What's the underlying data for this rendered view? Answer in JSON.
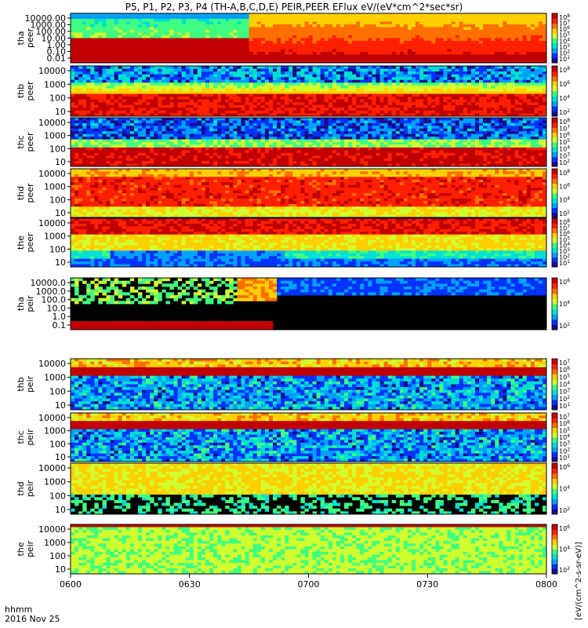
{
  "chart_data": {
    "type": "heatmap",
    "title": "P5, P1, P2, P3, P4 (TH-A,B,C,D,E) PEIR,PEER EFlux eV/(eV*cm^2*sec*sr)",
    "time_ticks": [
      "0600",
      "0630",
      "0700",
      "0730",
      "0800"
    ],
    "time_range": [
      "06:00",
      "08:00"
    ],
    "time_stamp": {
      "format": "hhmm",
      "date": "2016 Nov 25"
    },
    "colorbar_label": "[eV/(cm^2-s-sr-eV)]",
    "colormap": [
      "#1a0b8a",
      "#0033ff",
      "#00a0ff",
      "#00e0d0",
      "#40ff80",
      "#d0ff30",
      "#ffd000",
      "#ff7000",
      "#ff2000",
      "#c00000"
    ],
    "panels": [
      {
        "probe": "tha",
        "species": "peer",
        "ylabel": [
          "tha",
          "peer"
        ],
        "yticks": [
          "10000.00",
          "1000.00",
          "100.00",
          "10.00",
          "1.00",
          "0.10",
          "0.01"
        ],
        "cbar_ticks": [
          "10^8",
          "10^7",
          "10^6",
          "10^5",
          "10^4",
          "10^3",
          "10^2",
          "10^1"
        ]
      },
      {
        "probe": "thb",
        "species": "peer",
        "ylabel": [
          "thb",
          "peer"
        ],
        "yticks": [
          "10000",
          "1000",
          "100",
          "10"
        ],
        "cbar_ticks": [
          "10^8",
          "10^6",
          "10^4",
          "10^2"
        ]
      },
      {
        "probe": "thc",
        "species": "peer",
        "ylabel": [
          "thc",
          "peer"
        ],
        "yticks": [
          "10000",
          "1000",
          "100",
          "10"
        ],
        "cbar_ticks": [
          "10^8",
          "10^7",
          "10^6",
          "10^5",
          "10^4",
          "10^3",
          "10^2"
        ]
      },
      {
        "probe": "thd",
        "species": "peer",
        "ylabel": [
          "thd",
          "peer"
        ],
        "yticks": [
          "10000",
          "1000",
          "100",
          "10"
        ],
        "cbar_ticks": [
          "10^8",
          "10^6",
          "10^4",
          "10^2"
        ]
      },
      {
        "probe": "the",
        "species": "peer",
        "ylabel": [
          "the",
          "peer"
        ],
        "yticks": [
          "10000",
          "1000",
          "100",
          "10"
        ],
        "cbar_ticks": [
          "10^8",
          "10^7",
          "10^6",
          "10^5",
          "10^4",
          "10^3",
          "10^2",
          "10^1"
        ]
      },
      {
        "probe": "tha",
        "species": "peir",
        "ylabel": [
          "tha",
          "peir"
        ],
        "yticks": [
          "10000.0",
          "1000.0",
          "100.0",
          "10.0",
          "1.0",
          "0.1"
        ],
        "cbar_ticks": [
          "10^6",
          "10^4",
          "10^2"
        ]
      },
      {
        "probe": "thb",
        "species": "peir",
        "ylabel": [
          "thb",
          "peir"
        ],
        "yticks": [
          "10000",
          "1000",
          "100",
          "10"
        ],
        "cbar_ticks": [
          "10^7",
          "10^6",
          "10^5",
          "10^4",
          "10^3",
          "10^2",
          "10^1"
        ]
      },
      {
        "probe": "thc",
        "species": "peir",
        "ylabel": [
          "thc",
          "peir"
        ],
        "yticks": [
          "10000",
          "1000",
          "100",
          "10"
        ],
        "cbar_ticks": [
          "10^7",
          "10^6",
          "10^5",
          "10^4",
          "10^3",
          "10^2",
          "10^1"
        ]
      },
      {
        "probe": "thd",
        "species": "peir",
        "ylabel": [
          "thd",
          "peir"
        ],
        "yticks": [
          "10000",
          "1000",
          "100",
          "10"
        ],
        "cbar_ticks": [
          "10^6",
          "10^4",
          "10^2"
        ]
      },
      {
        "probe": "the",
        "species": "peir",
        "ylabel": [
          "the",
          "peir"
        ],
        "yticks": [
          "10000",
          "1000",
          "100",
          "10"
        ],
        "cbar_ticks": [
          "10^6",
          "10^4",
          "10^2"
        ]
      }
    ]
  }
}
